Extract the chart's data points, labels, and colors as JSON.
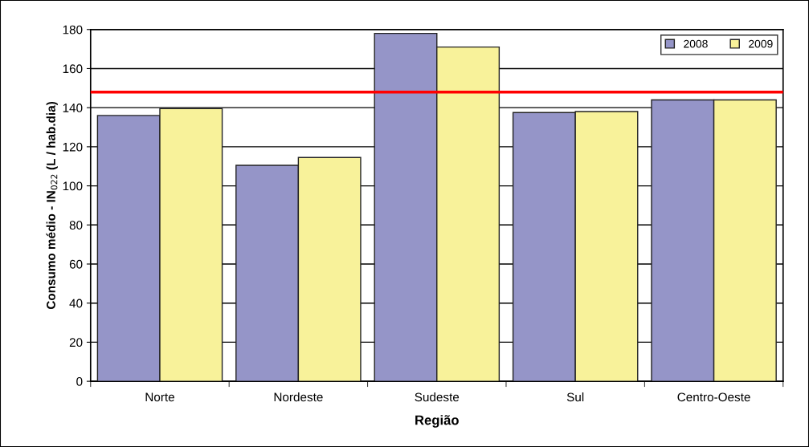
{
  "chart_data": {
    "type": "bar",
    "xlabel": "Região",
    "ylabel": "Consumo médio - IN$_{022}$ (L / hab.dia)",
    "categories": [
      "Norte",
      "Nordeste",
      "Sudeste",
      "Sul",
      "Centro-Oeste"
    ],
    "series": [
      {
        "name": "2008",
        "color": "#9595c8",
        "values": [
          136,
          110.5,
          178,
          137.5,
          144
        ]
      },
      {
        "name": "2009",
        "color": "#f8f29a",
        "values": [
          139.5,
          114.5,
          171,
          138,
          144
        ]
      }
    ],
    "ylim": [
      0,
      180
    ],
    "yticks": [
      0,
      20,
      40,
      60,
      80,
      100,
      120,
      140,
      160,
      180
    ],
    "ref_lines": [
      {
        "axis": "y",
        "value": 148,
        "color": "#ff0000"
      }
    ],
    "grid": "y",
    "legend": "top right"
  }
}
